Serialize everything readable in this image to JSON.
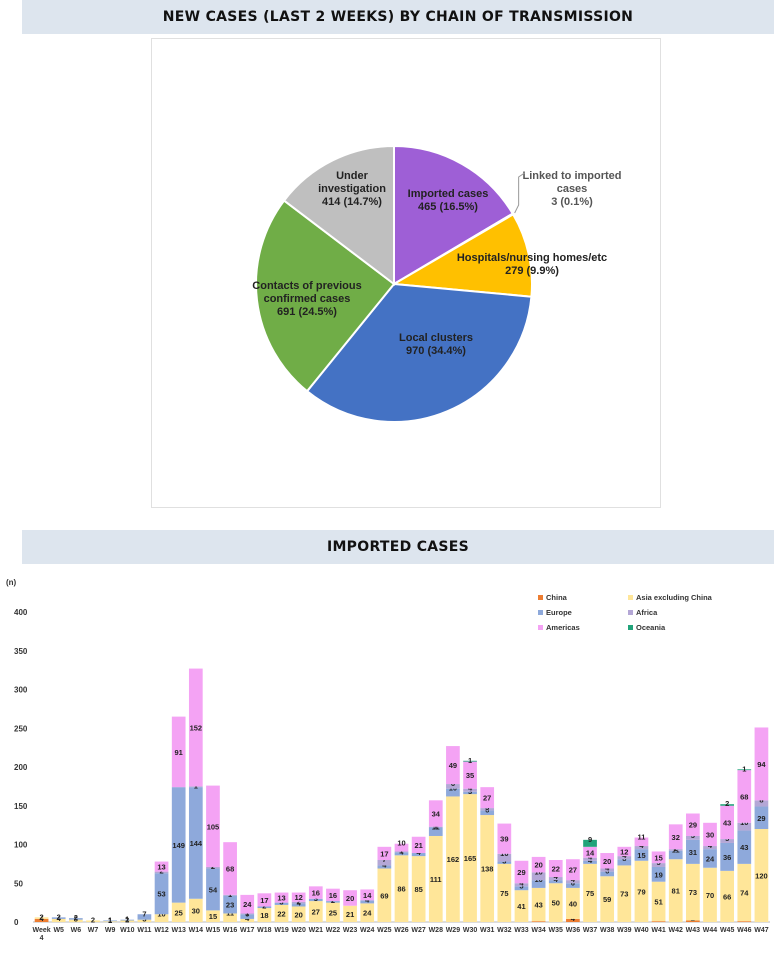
{
  "pie_title": "NEW CASES (LAST 2 WEEKS) BY CHAIN OF TRANSMISSION",
  "bar_title": "IMPORTED CASES",
  "chart_data": [
    {
      "type": "pie",
      "title": "NEW CASES (LAST 2 WEEKS) BY CHAIN OF TRANSMISSION",
      "slices": [
        {
          "label": "Imported cases",
          "value": 465,
          "pct": "16.5%",
          "color": "#9e5fd6"
        },
        {
          "label": "Linked to imported cases",
          "value": 3,
          "pct": "0.1%",
          "color": "#3a7bd5"
        },
        {
          "label": "Hospitals/nursing homes/etc",
          "value": 279,
          "pct": "9.9%",
          "color": "#ffc000"
        },
        {
          "label": "Local clusters",
          "value": 970,
          "pct": "34.4%",
          "color": "#4472c4"
        },
        {
          "label": "Contacts of previous confirmed cases",
          "value": 691,
          "pct": "24.5%",
          "color": "#70ad47"
        },
        {
          "label": "Under investigation",
          "value": 414,
          "pct": "14.7%",
          "color": "#bfbfbf"
        }
      ]
    },
    {
      "type": "bar",
      "stacked": true,
      "title": "IMPORTED CASES",
      "ylabel": "(n)",
      "ylim": [
        0,
        400
      ],
      "yticks": [
        0,
        50,
        100,
        150,
        200,
        250,
        300,
        350,
        400
      ],
      "legend_position": "top-right",
      "categories": [
        "Week 4",
        "W5",
        "W6",
        "W7",
        "W9",
        "W10",
        "W11",
        "W12",
        "W13",
        "W14",
        "W15",
        "W16",
        "W17",
        "W18",
        "W19",
        "W20",
        "W21",
        "W22",
        "W23",
        "W24",
        "W25",
        "W26",
        "W27",
        "W28",
        "W29",
        "W30",
        "W31",
        "W32",
        "W33",
        "W34",
        "W35",
        "W36",
        "W37",
        "W38",
        "W39",
        "W40",
        "W41",
        "W42",
        "W43",
        "W44",
        "W45",
        "W46",
        "W47"
      ],
      "series": [
        {
          "name": "China",
          "color": "#ed7d31",
          "values": [
            4,
            0,
            0,
            0,
            0,
            0,
            0,
            0,
            0,
            0,
            0,
            0,
            0,
            0,
            0,
            0,
            0,
            0,
            0,
            0,
            0,
            0,
            0,
            0,
            0,
            0,
            0,
            0,
            0,
            1,
            0,
            4,
            0,
            0,
            0,
            0,
            1,
            0,
            2,
            0,
            0,
            1,
            0
          ]
        },
        {
          "name": "Asia excluding China",
          "color": "#ffe699",
          "values": [
            2,
            4,
            3,
            2,
            1,
            2,
            3,
            10,
            25,
            30,
            15,
            11,
            4,
            18,
            22,
            20,
            27,
            25,
            21,
            24,
            69,
            86,
            85,
            111,
            162,
            165,
            138,
            75,
            41,
            43,
            50,
            40,
            75,
            59,
            73,
            79,
            51,
            81,
            73,
            70,
            66,
            74,
            120
          ]
        },
        {
          "name": "Europe",
          "color": "#8ea9db",
          "values": [
            0,
            2,
            2,
            0,
            1,
            1,
            7,
            53,
            149,
            144,
            54,
            23,
            6,
            2,
            3,
            4,
            3,
            2,
            0,
            4,
            4,
            4,
            4,
            11,
            10,
            3,
            6,
            3,
            5,
            10,
            4,
            6,
            4,
            6,
            8,
            15,
            19,
            11,
            31,
            24,
            36,
            43,
            29
          ]
        },
        {
          "name": "Africa",
          "color": "#b4a7d6",
          "values": [
            0,
            0,
            0,
            0,
            0,
            0,
            0,
            2,
            0,
            1,
            2,
            1,
            1,
            0,
            0,
            2,
            0,
            0,
            0,
            0,
            7,
            1,
            0,
            1,
            6,
            4,
            3,
            10,
            4,
            10,
            4,
            4,
            4,
            4,
            4,
            4,
            5,
            2,
            5,
            4,
            5,
            10,
            8
          ]
        },
        {
          "name": "Americas",
          "color": "#f4a3f4",
          "values": [
            0,
            0,
            0,
            0,
            0,
            0,
            0,
            13,
            91,
            152,
            105,
            68,
            24,
            17,
            13,
            12,
            16,
            16,
            20,
            14,
            17,
            10,
            21,
            34,
            49,
            35,
            27,
            39,
            29,
            20,
            22,
            27,
            14,
            20,
            12,
            11,
            15,
            32,
            29,
            30,
            43,
            68,
            94
          ]
        },
        {
          "name": "Oceania",
          "color": "#21a37a",
          "values": [
            0,
            0,
            0,
            0,
            0,
            0,
            0,
            0,
            0,
            0,
            0,
            0,
            0,
            0,
            0,
            0,
            0,
            0,
            0,
            0,
            0,
            0,
            0,
            0,
            0,
            1,
            0,
            0,
            0,
            0,
            0,
            0,
            9,
            0,
            0,
            0,
            0,
            0,
            0,
            0,
            2,
            1,
            0
          ]
        }
      ]
    }
  ]
}
